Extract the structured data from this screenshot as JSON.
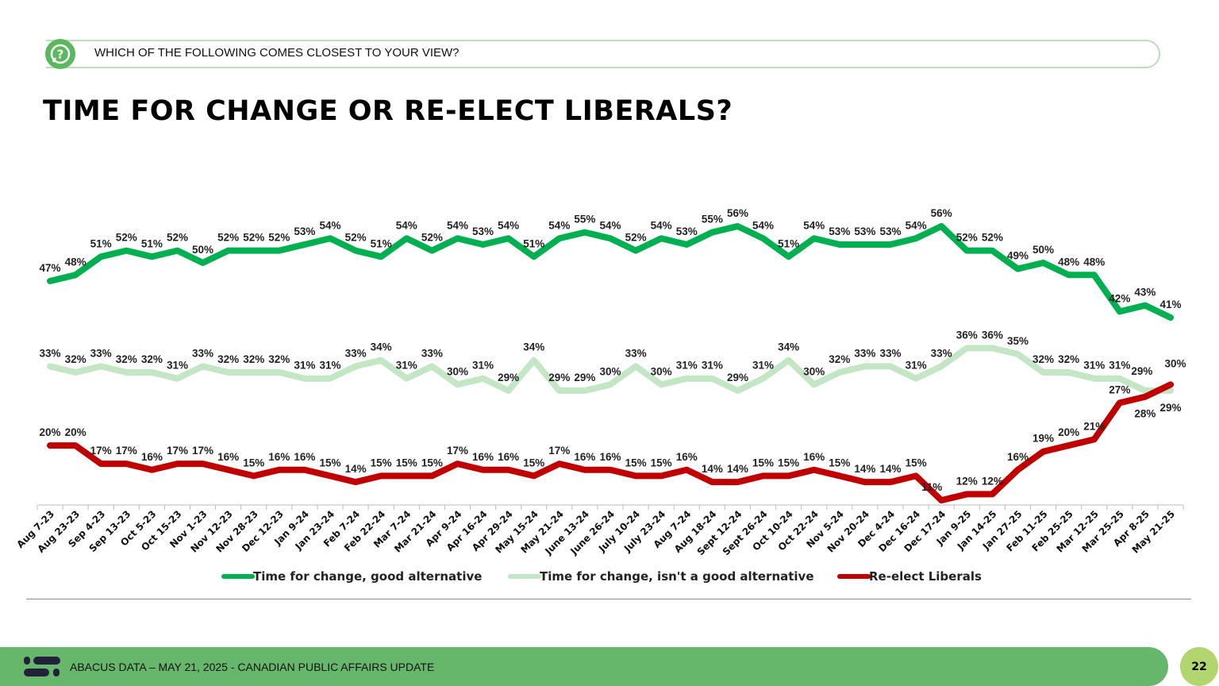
{
  "question": "WHICH OF THE FOLLOWING COMES CLOSEST TO YOUR VIEW?",
  "footer": {
    "text": "ABACUS DATA – MAY 21, 2025 - CANADIAN PUBLIC AFFAIRS UPDATE",
    "page": "22"
  },
  "chart_data": {
    "type": "line",
    "title": "TIME FOR CHANGE OR RE-ELECT LIBERALS?",
    "categories": [
      "Aug 7-23",
      "Aug 23-23",
      "Sep 4-23",
      "Sep 13-23",
      "Oct 5-23",
      "Oct 15-23",
      "Nov 1-23",
      "Nov 12-23",
      "Nov 28-23",
      "Dec 12-23",
      "Jan 9-24",
      "Jan 23-24",
      "Feb 7-24",
      "Feb 22-24",
      "Mar 7-24",
      "Mar 21-24",
      "Apr 9-24",
      "Apr 16-24",
      "Apr 29-24",
      "May 15-24",
      "May 21-24",
      "June 13-24",
      "June 26-24",
      "July 10-24",
      "July 23-24",
      "Aug 7-24",
      "Aug 18-24",
      "Sept 12-24",
      "Sept 26-24",
      "Oct 10-24",
      "Oct 22-24",
      "Nov 5-24",
      "Nov 20-24",
      "Dec 4-24",
      "Dec 16-24",
      "Dec 17-24",
      "Jan 9-25",
      "Jan 14-25",
      "Jan 27-25",
      "Feb 11-25",
      "Feb 25-25",
      "Mar 12-25",
      "Mar 25-25",
      "Apr 8-25",
      "May 21-25"
    ],
    "series": [
      {
        "name": "Time for change, good alternative",
        "color": "#00b050",
        "values": [
          47,
          48,
          51,
          52,
          51,
          52,
          50,
          52,
          52,
          52,
          53,
          54,
          52,
          51,
          54,
          52,
          54,
          53,
          54,
          51,
          54,
          55,
          54,
          52,
          54,
          53,
          55,
          56,
          54,
          51,
          54,
          53,
          53,
          53,
          54,
          56,
          52,
          52,
          49,
          50,
          48,
          48,
          42,
          43,
          41
        ]
      },
      {
        "name": "Time for change, isn't a good alternative",
        "color": "#c3e6c5",
        "values": [
          33,
          32,
          33,
          32,
          32,
          31,
          33,
          32,
          32,
          32,
          31,
          31,
          33,
          34,
          31,
          33,
          30,
          31,
          29,
          34,
          29,
          29,
          30,
          33,
          30,
          31,
          31,
          29,
          31,
          34,
          30,
          32,
          33,
          33,
          31,
          33,
          36,
          36,
          35,
          32,
          32,
          31,
          31,
          29,
          29
        ]
      },
      {
        "name": "Re-elect Liberals",
        "color": "#c00000",
        "values": [
          20,
          20,
          17,
          17,
          16,
          17,
          17,
          16,
          15,
          16,
          16,
          15,
          14,
          15,
          15,
          15,
          17,
          16,
          16,
          15,
          17,
          16,
          16,
          15,
          15,
          16,
          14,
          14,
          15,
          15,
          16,
          15,
          14,
          14,
          15,
          11,
          12,
          12,
          16,
          19,
          20,
          21,
          27,
          28,
          30
        ]
      }
    ],
    "data_labels": true,
    "value_suffix": "%",
    "grid": false,
    "legend": "bottom"
  }
}
